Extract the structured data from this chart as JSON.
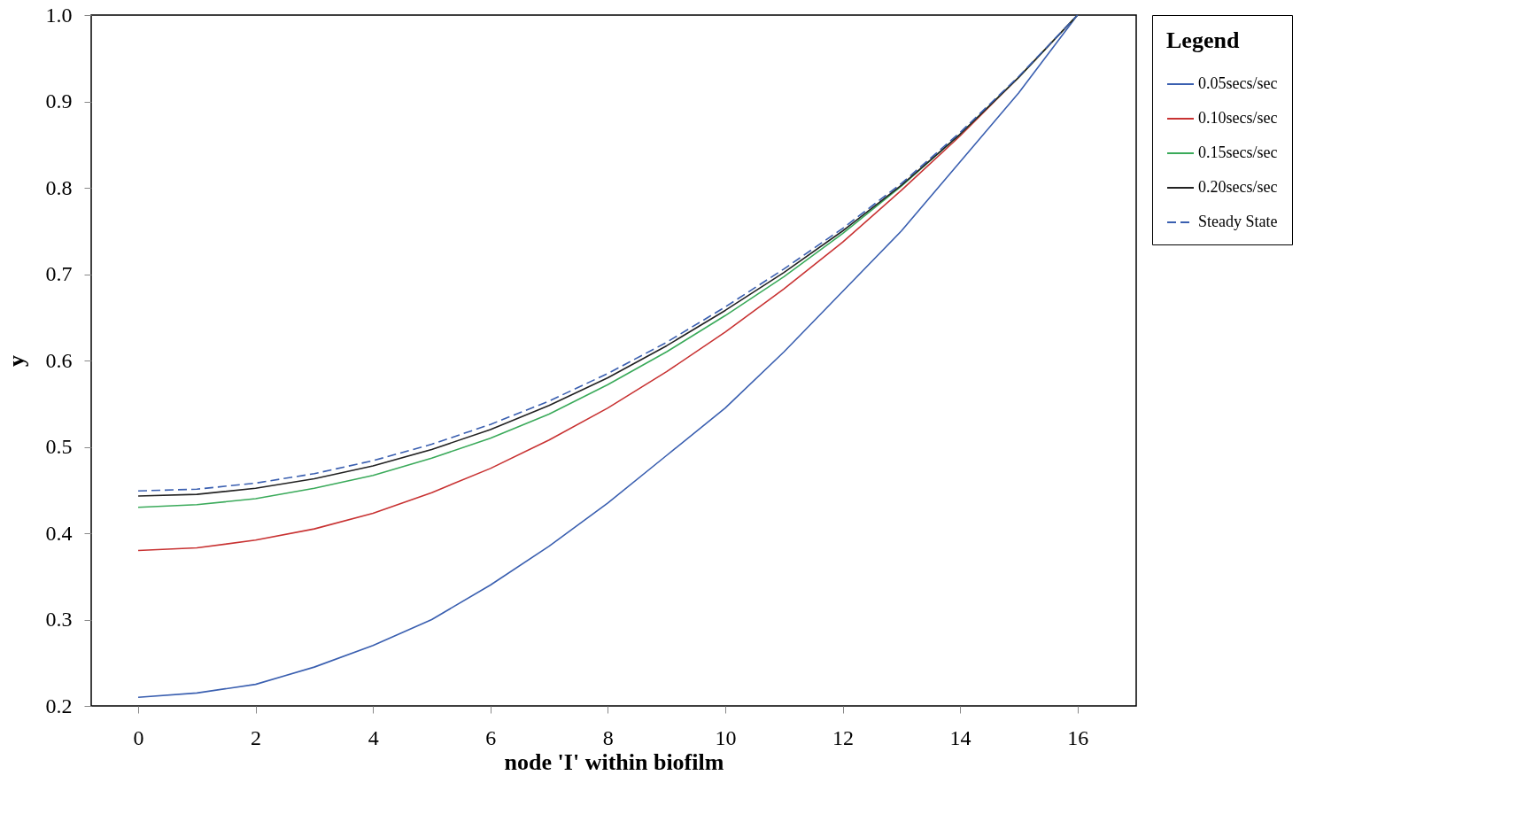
{
  "chart_data": {
    "type": "line",
    "xlabel": "node 'I' within biofilm",
    "ylabel": "y",
    "legend_title": "Legend",
    "legend": "right",
    "grid": false,
    "marker": "none",
    "x": [
      0,
      1,
      2,
      3,
      4,
      5,
      6,
      7,
      8,
      9,
      10,
      11,
      12,
      13,
      14,
      15,
      16
    ],
    "xlim": [
      -0.8,
      17.0
    ],
    "xticks": [
      0,
      2,
      4,
      6,
      8,
      10,
      12,
      14,
      16
    ],
    "ylim": [
      0.2,
      1.0
    ],
    "yticks": [
      0.2,
      0.3,
      0.4,
      0.5,
      0.6,
      0.7,
      0.8,
      0.9,
      {
        "value": 1,
        "label": "1.0"
      }
    ],
    "series": [
      {
        "name": "0.05secs/sec",
        "color": "#3a5fb0",
        "line_style": "solid",
        "values": [
          0.21,
          0.215,
          0.225,
          0.245,
          0.27,
          0.3,
          0.34,
          0.385,
          0.435,
          0.49,
          0.545,
          0.61,
          0.68,
          0.75,
          0.83,
          0.91,
          1.0
        ]
      },
      {
        "name": "0.10secs/sec",
        "color": "#c83232",
        "line_style": "solid",
        "values": [
          0.38,
          0.383,
          0.392,
          0.405,
          0.423,
          0.447,
          0.475,
          0.508,
          0.545,
          0.587,
          0.633,
          0.683,
          0.737,
          0.797,
          0.86,
          0.928,
          1.0
        ]
      },
      {
        "name": "0.15secs/sec",
        "color": "#3aaa5a",
        "line_style": "solid",
        "values": [
          0.43,
          0.433,
          0.44,
          0.452,
          0.467,
          0.487,
          0.51,
          0.538,
          0.572,
          0.61,
          0.652,
          0.697,
          0.747,
          0.802,
          0.862,
          0.928,
          1.0
        ]
      },
      {
        "name": "0.20secs/sec",
        "color": "#222222",
        "line_style": "solid",
        "values": [
          0.443,
          0.445,
          0.452,
          0.463,
          0.478,
          0.497,
          0.52,
          0.548,
          0.58,
          0.617,
          0.658,
          0.702,
          0.75,
          0.803,
          0.862,
          0.928,
          1.0
        ]
      },
      {
        "name": "Steady State",
        "color": "#3a5fb0",
        "line_style": "dashed",
        "values": [
          0.449,
          0.451,
          0.458,
          0.469,
          0.484,
          0.503,
          0.526,
          0.553,
          0.585,
          0.621,
          0.662,
          0.706,
          0.753,
          0.805,
          0.864,
          0.929,
          1.0
        ]
      }
    ]
  }
}
